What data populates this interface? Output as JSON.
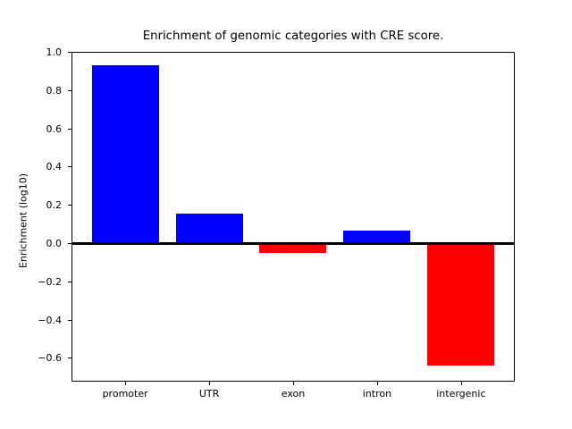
{
  "chart_data": {
    "type": "bar",
    "title": "Enrichment of genomic categories with CRE score.",
    "ylabel": "Enrichment (log10)",
    "xlabel": "",
    "categories": [
      "promoter",
      "UTR",
      "exon",
      "intron",
      "intergenic"
    ],
    "values": [
      0.93,
      0.155,
      -0.05,
      0.07,
      -0.64
    ],
    "bar_colors": [
      "#0000ff",
      "#0000ff",
      "#ff0000",
      "#0000ff",
      "#ff0000"
    ],
    "positive_color": "#0000ff",
    "negative_color": "#ff0000",
    "yticks": [
      1.0,
      0.8,
      0.6,
      0.4,
      0.2,
      0.0,
      -0.2,
      -0.4,
      -0.6
    ],
    "ylim": [
      -0.72,
      1.01
    ],
    "xlim": [
      -0.64,
      4.64
    ],
    "grid": false,
    "legend_position": "none",
    "zero_line": {
      "present": true,
      "color": "#000000"
    },
    "background": "#ffffff",
    "text_color": "#000000"
  }
}
